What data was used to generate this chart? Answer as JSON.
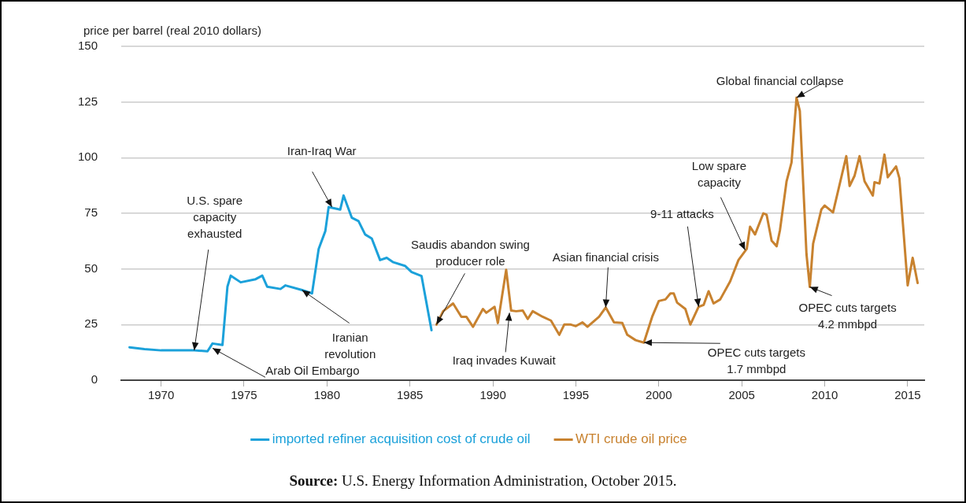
{
  "chart_data": {
    "type": "line",
    "ylabel": "price per barrel (real 2010 dollars)",
    "xlim": [
      1967.6,
      2016
    ],
    "xticks": [
      1970,
      1975,
      1980,
      1985,
      1990,
      1995,
      2000,
      2005,
      2010,
      2015
    ],
    "ylim": [
      0,
      150
    ],
    "yticks": [
      0,
      25,
      50,
      75,
      100,
      125,
      150
    ],
    "grid": "y",
    "legend": "bottom",
    "marker": "none",
    "line_style": "solid",
    "series": [
      {
        "name": "imported refiner acquisition cost of crude oil",
        "color": "#1ba1da",
        "x": [
          1968.1,
          1969,
          1970,
          1972,
          1972.8,
          1973.1,
          1973.7,
          1974,
          1974.2,
          1974.8,
          1975.7,
          1976.1,
          1976.4,
          1977.2,
          1977.5,
          1978.5,
          1979.1,
          1979.5,
          1979.9,
          1980.1,
          1980.8,
          1981,
          1981.5,
          1981.9,
          1982.3,
          1982.7,
          1983.2,
          1983.6,
          1984,
          1984.7,
          1985.1,
          1985.7,
          1986.3
        ],
        "values": [
          14.8,
          14,
          13.4,
          13.4,
          13,
          16.5,
          15.8,
          42,
          47,
          44,
          45.4,
          47,
          42,
          41,
          42.6,
          40.5,
          39,
          59,
          67,
          77.8,
          76.7,
          83,
          73,
          71.5,
          65.5,
          63.7,
          54,
          55,
          53,
          51.4,
          48.6,
          46.8,
          22.5
        ]
      },
      {
        "name": "WTI crude oil price",
        "color": "#c8822f",
        "x": [
          1986.6,
          1987,
          1987.6,
          1988.1,
          1988.4,
          1988.8,
          1989.4,
          1989.6,
          1990.1,
          1990.3,
          1990.8,
          1991.1,
          1991.4,
          1991.8,
          1992.1,
          1992.4,
          1993,
          1993.5,
          1994,
          1994.3,
          1994.7,
          1995,
          1995.4,
          1995.7,
          1996.4,
          1996.8,
          1997.3,
          1997.8,
          1998.1,
          1998.6,
          1999.1,
          1999.6,
          2000,
          2000.4,
          2000.7,
          2000.9,
          2001.1,
          2001.6,
          2001.9,
          2002.4,
          2002.7,
          2003,
          2003.3,
          2003.7,
          2004.3,
          2004.8,
          2005.3,
          2005.5,
          2005.8,
          2006.3,
          2006.5,
          2006.8,
          2007.1,
          2007.3,
          2007.7,
          2008,
          2008.3,
          2008.5,
          2008.9,
          2009.1,
          2009.3,
          2009.8,
          2010,
          2010.5,
          2011.3,
          2011.5,
          2011.8,
          2012.1,
          2012.4,
          2012.9,
          2013,
          2013.3,
          2013.6,
          2013.8,
          2014.3,
          2014.5,
          2015,
          2015.3,
          2015.6
        ],
        "values": [
          25,
          31,
          34.5,
          28.5,
          28.5,
          24,
          32,
          30.3,
          33,
          25.7,
          49.6,
          31.3,
          31,
          31.3,
          27.5,
          31,
          28.5,
          26.8,
          20.4,
          25,
          25,
          24.3,
          26,
          24,
          28.5,
          32.7,
          26,
          25.7,
          20.4,
          18,
          16.9,
          28.5,
          35.6,
          36.3,
          39,
          39,
          34.9,
          32,
          25,
          33,
          33.8,
          40,
          34.5,
          36.3,
          44.4,
          54,
          59,
          69,
          65.5,
          75,
          74.3,
          62.7,
          60.2,
          67.3,
          89.4,
          97.9,
          127,
          121,
          56.7,
          41.9,
          61.3,
          76.8,
          78.5,
          75.4,
          100.7,
          87.3,
          91.9,
          100.7,
          89.4,
          83,
          89,
          88.4,
          101.4,
          91.2,
          96.1,
          90.8,
          42.6,
          55,
          43.7
        ]
      }
    ],
    "annotations": [
      {
        "text": "U.S. spare capacity exhausted",
        "x": 1972,
        "y": 13.4
      },
      {
        "text": "Arab Oil Embargo",
        "x": 1973.1,
        "y": 14.4
      },
      {
        "text": "Iranian revolution",
        "x": 1978.5,
        "y": 40.5
      },
      {
        "text": "Iran-Iraq War",
        "x": 1980.3,
        "y": 77.8
      },
      {
        "text": "Saudis abandon swing producer role",
        "x": 1986.6,
        "y": 25
      },
      {
        "text": "Iraq invades Kuwait",
        "x": 1991,
        "y": 30.3
      },
      {
        "text": "Asian financial crisis",
        "x": 1996.8,
        "y": 32.7
      },
      {
        "text": "9-11 attacks",
        "x": 2002.4,
        "y": 33
      },
      {
        "text": "Low spare capacity",
        "x": 2005.2,
        "y": 58.5
      },
      {
        "text": "OPEC cuts targets 1.7 mmbpd",
        "x": 1999.1,
        "y": 16.9
      },
      {
        "text": "Global financial collapse",
        "x": 2008.3,
        "y": 127
      },
      {
        "text": "OPEC cuts targets 4.2 mmbpd",
        "x": 2009.1,
        "y": 41.9
      },
      "Source: U.S. Energy Information Administration, October 2015."
    ]
  }
}
